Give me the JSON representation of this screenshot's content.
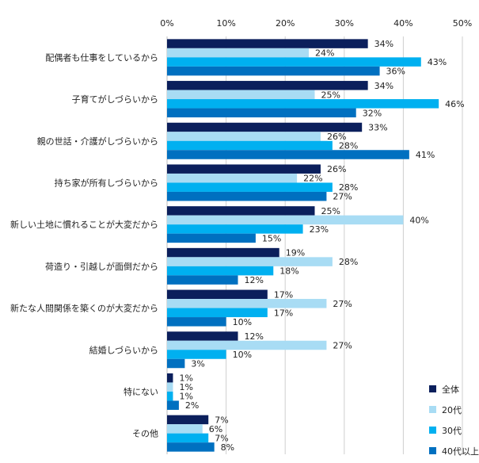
{
  "chart_data": {
    "type": "bar",
    "orientation": "horizontal",
    "title": "",
    "xlabel": "",
    "ylabel": "",
    "xlim": [
      0,
      50
    ],
    "x_ticks": [
      0,
      10,
      20,
      30,
      40,
      50
    ],
    "tick_suffix": "%",
    "grid": true,
    "legend_position": "bottom-right",
    "categories": [
      "配偶者も仕事をしているから",
      "子育てがしづらいから",
      "親の世話・介護がしづらいから",
      "持ち家が所有しづらいから",
      "新しい土地に慣れることが大変だから",
      "荷造り・引越しが面倒だから",
      "新たな人間関係を築くのが大変だから",
      "結婚しづらいから",
      "特にない",
      "その他"
    ],
    "series": [
      {
        "name": "全体",
        "color": "#0b1f5c",
        "values": [
          34,
          34,
          33,
          26,
          25,
          19,
          17,
          12,
          1,
          7
        ]
      },
      {
        "name": "20代",
        "color": "#a8dcf4",
        "values": [
          24,
          25,
          26,
          22,
          40,
          28,
          27,
          27,
          1,
          6
        ]
      },
      {
        "name": "30代",
        "color": "#00b0f0",
        "values": [
          43,
          46,
          28,
          28,
          23,
          18,
          17,
          10,
          1,
          7
        ]
      },
      {
        "name": "40代以上",
        "color": "#0070c0",
        "values": [
          36,
          32,
          41,
          27,
          15,
          12,
          10,
          3,
          2,
          8
        ]
      }
    ]
  }
}
